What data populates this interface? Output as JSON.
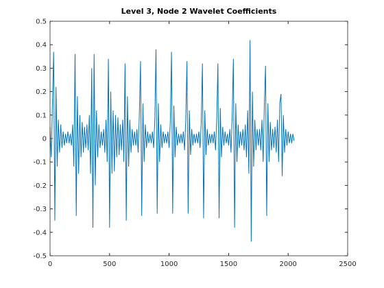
{
  "chart_data": {
    "type": "line",
    "title": "Level 3, Node 2 Wavelet Coefficients",
    "x": [
      0,
      10,
      20,
      30,
      40,
      50,
      60,
      70,
      80,
      90,
      100,
      110,
      120,
      130,
      140,
      150,
      160,
      170,
      180,
      190,
      200,
      210,
      220,
      230,
      240,
      250,
      260,
      270,
      280,
      290,
      300,
      310,
      320,
      330,
      340,
      350,
      360,
      370,
      380,
      390,
      400,
      410,
      420,
      430,
      440,
      450,
      460,
      470,
      480,
      490,
      500,
      510,
      520,
      530,
      540,
      550,
      560,
      570,
      580,
      590,
      600,
      610,
      620,
      630,
      640,
      650,
      660,
      670,
      680,
      690,
      700,
      710,
      720,
      730,
      740,
      750,
      760,
      770,
      780,
      790,
      800,
      810,
      820,
      830,
      840,
      850,
      860,
      870,
      880,
      890,
      900,
      910,
      920,
      930,
      940,
      950,
      960,
      970,
      980,
      990,
      1000,
      1010,
      1020,
      1030,
      1040,
      1050,
      1060,
      1070,
      1080,
      1090,
      1100,
      1110,
      1120,
      1130,
      1140,
      1150,
      1160,
      1170,
      1180,
      1190,
      1200,
      1210,
      1220,
      1230,
      1240,
      1250,
      1260,
      1270,
      1280,
      1290,
      1300,
      1310,
      1320,
      1330,
      1340,
      1350,
      1360,
      1370,
      1380,
      1390,
      1400,
      1410,
      1420,
      1430,
      1440,
      1450,
      1460,
      1470,
      1480,
      1490,
      1500,
      1510,
      1520,
      1530,
      1540,
      1550,
      1560,
      1570,
      1580,
      1590,
      1600,
      1610,
      1620,
      1630,
      1640,
      1650,
      1660,
      1670,
      1680,
      1690,
      1700,
      1710,
      1720,
      1730,
      1740,
      1750,
      1760,
      1770,
      1780,
      1790,
      1800,
      1810,
      1820,
      1830,
      1840,
      1850,
      1860,
      1870,
      1880,
      1890,
      1900,
      1910,
      1920,
      1930,
      1940,
      1950,
      1960,
      1970,
      1980,
      1990,
      2000,
      2010,
      2020,
      2030,
      2040,
      2050
    ],
    "series": [
      {
        "color": "#0072bd",
        "values": [
          0.05,
          -0.08,
          0.15,
          0.37,
          -0.35,
          0.22,
          -0.12,
          0.08,
          -0.06,
          0.06,
          -0.04,
          0.03,
          -0.03,
          0.02,
          -0.02,
          0.03,
          -0.02,
          0.02,
          -0.03,
          0.06,
          -0.12,
          0.36,
          -0.33,
          0.18,
          -0.15,
          0.1,
          -0.08,
          0.07,
          -0.06,
          0.05,
          -0.04,
          0.06,
          -0.05,
          0.1,
          -0.15,
          0.3,
          -0.38,
          0.36,
          -0.2,
          0.12,
          -0.08,
          0.06,
          -0.04,
          0.03,
          -0.03,
          0.04,
          -0.06,
          0.08,
          -0.1,
          0.34,
          -0.38,
          0.2,
          -0.15,
          0.12,
          -0.14,
          0.1,
          -0.08,
          0.09,
          -0.07,
          0.06,
          -0.05,
          0.08,
          -0.1,
          0.32,
          -0.35,
          0.18,
          -0.12,
          0.08,
          -0.06,
          0.04,
          -0.03,
          0.03,
          -0.03,
          0.04,
          -0.06,
          0.1,
          0.33,
          -0.33,
          0.15,
          -0.1,
          0.06,
          -0.04,
          0.03,
          -0.02,
          0.02,
          -0.02,
          0.03,
          -0.04,
          0.08,
          0.38,
          -0.32,
          0.15,
          -0.1,
          0.06,
          -0.04,
          0.03,
          -0.02,
          0.02,
          -0.02,
          0.03,
          -0.04,
          0.07,
          0.37,
          -0.32,
          0.14,
          -0.08,
          0.05,
          -0.03,
          0.02,
          -0.02,
          0.02,
          -0.02,
          0.03,
          -0.05,
          0.08,
          0.33,
          -0.32,
          0.12,
          -0.07,
          0.04,
          -0.03,
          0.02,
          -0.02,
          0.02,
          -0.02,
          0.03,
          -0.04,
          0.07,
          0.32,
          -0.34,
          0.12,
          -0.07,
          0.04,
          -0.03,
          0.02,
          -0.02,
          0.02,
          -0.02,
          0.03,
          -0.05,
          0.08,
          0.32,
          -0.34,
          0.13,
          -0.08,
          0.05,
          -0.03,
          0.03,
          -0.02,
          0.02,
          -0.03,
          0.04,
          -0.06,
          0.1,
          0.34,
          -0.38,
          0.15,
          -0.1,
          0.06,
          -0.04,
          0.03,
          -0.03,
          0.04,
          -0.05,
          0.06,
          -0.08,
          0.12,
          -0.15,
          0.42,
          -0.44,
          0.2,
          -0.12,
          0.08,
          -0.05,
          0.04,
          -0.03,
          0.04,
          -0.05,
          0.08,
          -0.1,
          0.14,
          0.31,
          -0.33,
          0.15,
          -0.1,
          0.07,
          -0.05,
          0.04,
          -0.04,
          0.05,
          -0.06,
          0.08,
          -0.1,
          0.15,
          0.19,
          -0.16,
          0.1,
          -0.06,
          0.04,
          -0.03,
          0.03,
          -0.02,
          0.02,
          -0.02,
          0.02,
          -0.01
        ]
      }
    ],
    "xlim": [
      0,
      2500
    ],
    "xticks": [
      0,
      500,
      1000,
      1500,
      2000,
      2500
    ],
    "ylim": [
      -0.5,
      0.5
    ],
    "yticks": [
      -0.5,
      -0.4,
      -0.3,
      -0.2,
      -0.1,
      0,
      0.1,
      0.2,
      0.3,
      0.4,
      0.5
    ]
  }
}
